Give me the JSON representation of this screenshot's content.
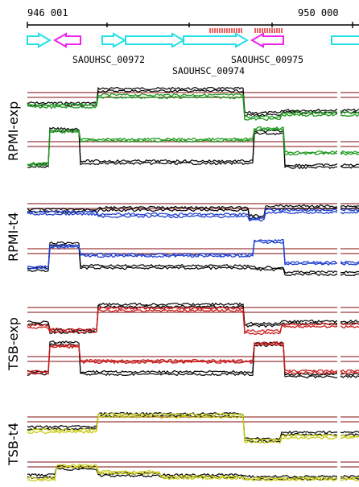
{
  "coordinates": {
    "start": "946 001",
    "end": "950 000"
  },
  "genes": [
    {
      "label": "SAOUHSC_00972"
    },
    {
      "label": "SAOUHSC_00974"
    },
    {
      "label": "SAOUHSC_00975"
    }
  ],
  "panels": [
    {
      "label": "RPMI-exp",
      "color": "#1f9a1f"
    },
    {
      "label": "RPMI-t4",
      "color": "#1f3fd0"
    },
    {
      "label": "TSB-exp",
      "color": "#cc1f1f"
    },
    {
      "label": "TSB-t4",
      "color": "#c8cc1a"
    }
  ],
  "colors": {
    "forward_gene": "#22e0e8",
    "reverse_gene": "#ee22ee",
    "reference_line": "#9b3a3a",
    "feature_mark": "#e02020",
    "trace": "#000000"
  }
}
